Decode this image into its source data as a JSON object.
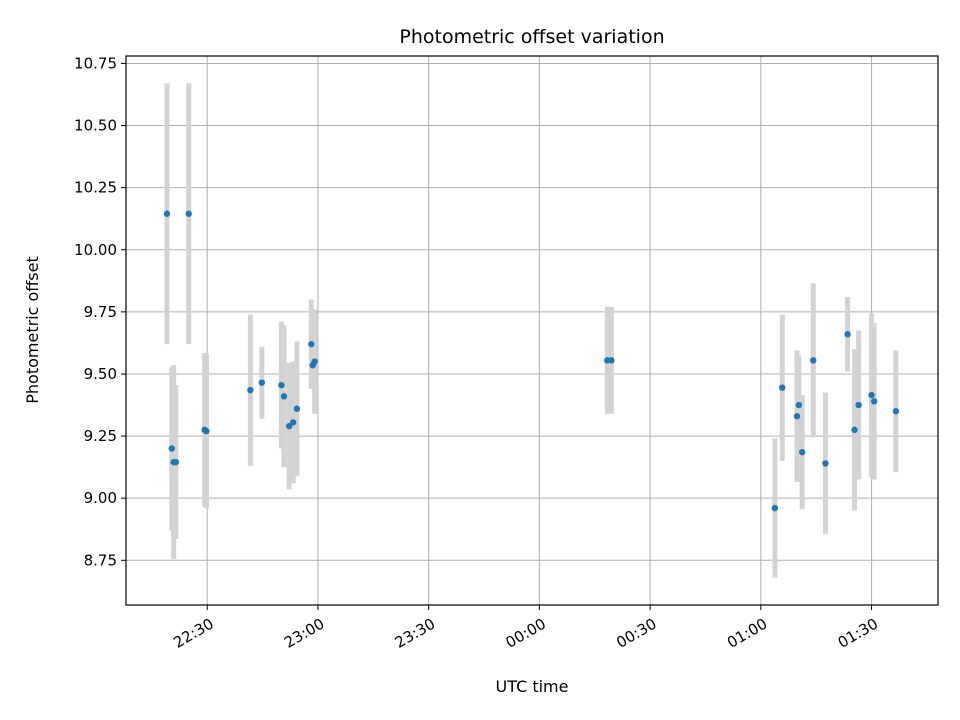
{
  "chart_data": {
    "type": "scatter",
    "title": "Photometric offset variation",
    "xlabel": "UTC time",
    "ylabel": "Photometric offset",
    "x_unit": "time of day (UTC, spanning midnight)",
    "xlim": [
      "22:08",
      "01:48"
    ],
    "ylim": [
      8.57,
      10.78
    ],
    "x_ticks": [
      "22:30",
      "23:00",
      "23:30",
      "00:00",
      "00:30",
      "01:00",
      "01:30"
    ],
    "y_ticks": [
      "8.75",
      "9.00",
      "9.25",
      "9.50",
      "9.75",
      "10.00",
      "10.25",
      "10.50",
      "10.75"
    ],
    "grid": true,
    "marker_color": "#1f77b4",
    "errorbar_color": "#d3d3d3",
    "series": [
      {
        "points": [
          {
            "x": "22:19:06",
            "y": 10.145,
            "err": 0.525
          },
          {
            "x": "22:25:00",
            "y": 10.145,
            "err": 0.525
          },
          {
            "x": "22:20:24",
            "y": 9.2,
            "err": 0.33
          },
          {
            "x": "22:20:55",
            "y": 9.145,
            "err": 0.39
          },
          {
            "x": "22:21:30",
            "y": 9.145,
            "err": 0.31
          },
          {
            "x": "22:29:18",
            "y": 9.275,
            "err": 0.31
          },
          {
            "x": "22:29:48",
            "y": 9.27,
            "err": 0.31
          },
          {
            "x": "22:41:42",
            "y": 9.435,
            "err": 0.305
          },
          {
            "x": "22:44:48",
            "y": 9.465,
            "err": 0.145
          },
          {
            "x": "22:50:06",
            "y": 9.455,
            "err": 0.255
          },
          {
            "x": "22:50:48",
            "y": 9.41,
            "err": 0.285
          },
          {
            "x": "22:52:12",
            "y": 9.29,
            "err": 0.255
          },
          {
            "x": "22:53:18",
            "y": 9.305,
            "err": 0.245
          },
          {
            "x": "22:54:18",
            "y": 9.36,
            "err": 0.27
          },
          {
            "x": "22:58:12",
            "y": 9.62,
            "err": 0.18
          },
          {
            "x": "22:58:36",
            "y": 9.535,
            "err": 0.09
          },
          {
            "x": "22:59:06",
            "y": 9.55,
            "err": 0.21
          },
          {
            "x": "00:18:24",
            "y": 9.555,
            "err": 0.215
          },
          {
            "x": "00:19:30",
            "y": 9.555,
            "err": 0.215
          },
          {
            "x": "01:03:48",
            "y": 8.96,
            "err": 0.28
          },
          {
            "x": "01:05:48",
            "y": 9.445,
            "err": 0.295
          },
          {
            "x": "01:09:48",
            "y": 9.33,
            "err": 0.265
          },
          {
            "x": "01:10:18",
            "y": 9.375,
            "err": 0.2
          },
          {
            "x": "01:11:12",
            "y": 9.185,
            "err": 0.23
          },
          {
            "x": "01:14:12",
            "y": 9.555,
            "err": 0.31
          },
          {
            "x": "01:17:30",
            "y": 9.14,
            "err": 0.285
          },
          {
            "x": "01:23:30",
            "y": 9.66,
            "err": 0.15
          },
          {
            "x": "01:25:24",
            "y": 9.275,
            "err": 0.325
          },
          {
            "x": "01:26:30",
            "y": 9.375,
            "err": 0.3
          },
          {
            "x": "01:30:00",
            "y": 9.415,
            "err": 0.33
          },
          {
            "x": "01:30:42",
            "y": 9.39,
            "err": 0.315
          },
          {
            "x": "01:36:36",
            "y": 9.35,
            "err": 0.245
          }
        ]
      }
    ]
  }
}
